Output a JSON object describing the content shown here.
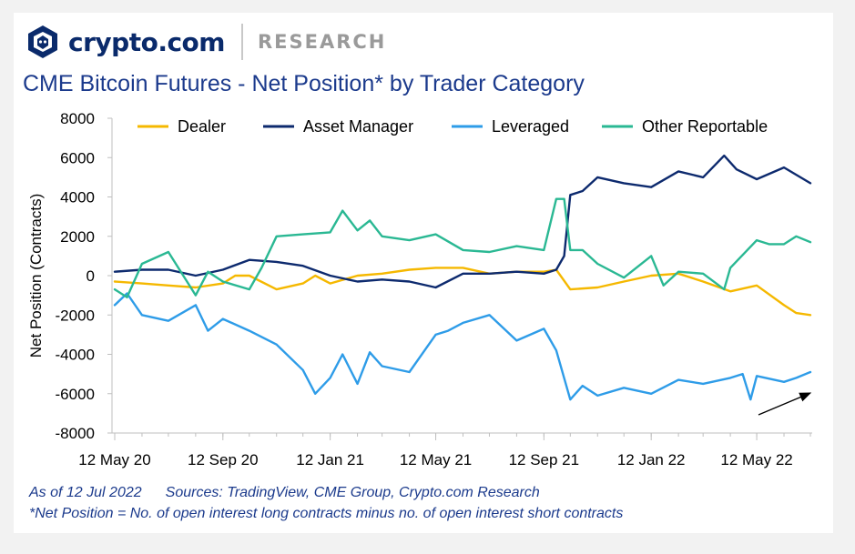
{
  "header": {
    "brand_name": "crypto.com",
    "section_label": "RESEARCH",
    "logo_icon": "crypto-com-lion-shield-icon"
  },
  "footer": {
    "as_of": "As of 12 Jul 2022",
    "sources": "Sources: TradingView, CME Group, Crypto.com Research",
    "note": "*Net Position = No. of open interest long contracts minus no. of open interest short contracts"
  },
  "chart_data": {
    "type": "line",
    "title": "CME Bitcoin Futures - Net Position* by Trader Category",
    "xlabel": "",
    "ylabel": "Net Position (Contracts)",
    "ylim": [
      -8000,
      8000
    ],
    "y_ticks": [
      8000,
      6000,
      4000,
      2000,
      0,
      -2000,
      -4000,
      -6000,
      -8000
    ],
    "x_ticks": [
      "12 May 20",
      "12 Sep 20",
      "12 Jan 21",
      "12 May 21",
      "12 Sep 21",
      "12 Jan 22",
      "12 May 22"
    ],
    "legend_placement": "top",
    "grid": false,
    "colors": {
      "dealer": "#f5b800",
      "asset_manager": "#0d2a6e",
      "leveraged": "#2e9ce8",
      "other_reportable": "#2ab893",
      "axis": "#bfbfbf",
      "arrow": "#000000"
    },
    "annotation": "upward arrow near latest Leveraged values",
    "series": [
      {
        "name": "Dealer",
        "color": "#f5b800",
        "points": [
          [
            "12 May 20",
            -300
          ],
          [
            "12 Jun 20",
            -400
          ],
          [
            "12 Jul 20",
            -500
          ],
          [
            "12 Aug 20",
            -600
          ],
          [
            "12 Sep 20",
            -400
          ],
          [
            "26 Sep 20",
            0
          ],
          [
            "12 Oct 20",
            0
          ],
          [
            "12 Nov 20",
            -700
          ],
          [
            "12 Dec 20",
            -400
          ],
          [
            "26 Dec 20",
            0
          ],
          [
            "12 Jan 21",
            -400
          ],
          [
            "12 Feb 21",
            0
          ],
          [
            "12 Mar 21",
            100
          ],
          [
            "12 Apr 21",
            300
          ],
          [
            "12 May 21",
            400
          ],
          [
            "12 Jun 21",
            400
          ],
          [
            "12 Jul 21",
            100
          ],
          [
            "12 Aug 21",
            200
          ],
          [
            "12 Sep 21",
            200
          ],
          [
            "26 Sep 21",
            300
          ],
          [
            "12 Oct 21",
            -700
          ],
          [
            "12 Nov 21",
            -600
          ],
          [
            "12 Dec 21",
            -300
          ],
          [
            "12 Jan 22",
            0
          ],
          [
            "12 Feb 22",
            100
          ],
          [
            "12 Mar 22",
            -300
          ],
          [
            "12 Apr 22",
            -800
          ],
          [
            "12 May 22",
            -500
          ],
          [
            "12 Jun 22",
            -1500
          ],
          [
            "26 Jun 22",
            -1900
          ],
          [
            "12 Jul 22",
            -2000
          ]
        ]
      },
      {
        "name": "Asset Manager",
        "color": "#0d2a6e",
        "points": [
          [
            "12 May 20",
            200
          ],
          [
            "12 Jun 20",
            300
          ],
          [
            "12 Jul 20",
            300
          ],
          [
            "12 Aug 20",
            0
          ],
          [
            "12 Sep 20",
            300
          ],
          [
            "12 Oct 20",
            800
          ],
          [
            "12 Nov 20",
            700
          ],
          [
            "12 Dec 20",
            500
          ],
          [
            "12 Jan 21",
            0
          ],
          [
            "12 Feb 21",
            -300
          ],
          [
            "12 Mar 21",
            -200
          ],
          [
            "12 Apr 21",
            -300
          ],
          [
            "12 May 21",
            -600
          ],
          [
            "12 Jun 21",
            100
          ],
          [
            "12 Jul 21",
            100
          ],
          [
            "12 Aug 21",
            200
          ],
          [
            "12 Sep 21",
            100
          ],
          [
            "26 Sep 21",
            300
          ],
          [
            "05 Oct 21",
            1000
          ],
          [
            "12 Oct 21",
            4100
          ],
          [
            "26 Oct 21",
            4300
          ],
          [
            "12 Nov 21",
            5000
          ],
          [
            "12 Dec 21",
            4700
          ],
          [
            "12 Jan 22",
            4500
          ],
          [
            "12 Feb 22",
            5300
          ],
          [
            "12 Mar 22",
            5000
          ],
          [
            "05 Apr 22",
            6100
          ],
          [
            "19 Apr 22",
            5400
          ],
          [
            "12 May 22",
            4900
          ],
          [
            "12 Jun 22",
            5500
          ],
          [
            "12 Jul 22",
            4700
          ]
        ]
      },
      {
        "name": "Leveraged",
        "color": "#2e9ce8",
        "points": [
          [
            "12 May 20",
            -1500
          ],
          [
            "26 May 20",
            -900
          ],
          [
            "12 Jun 20",
            -2000
          ],
          [
            "12 Jul 20",
            -2300
          ],
          [
            "12 Aug 20",
            -1500
          ],
          [
            "26 Aug 20",
            -2800
          ],
          [
            "12 Sep 20",
            -2200
          ],
          [
            "12 Oct 20",
            -2800
          ],
          [
            "12 Nov 20",
            -3500
          ],
          [
            "12 Dec 20",
            -4800
          ],
          [
            "26 Dec 20",
            -6000
          ],
          [
            "12 Jan 21",
            -5200
          ],
          [
            "26 Jan 21",
            -4000
          ],
          [
            "12 Feb 21",
            -5500
          ],
          [
            "26 Feb 21",
            -3900
          ],
          [
            "12 Mar 21",
            -4600
          ],
          [
            "12 Apr 21",
            -4900
          ],
          [
            "12 May 21",
            -3000
          ],
          [
            "26 May 21",
            -2800
          ],
          [
            "12 Jun 21",
            -2400
          ],
          [
            "12 Jul 21",
            -2000
          ],
          [
            "12 Aug 21",
            -3300
          ],
          [
            "12 Sep 21",
            -2700
          ],
          [
            "26 Sep 21",
            -3800
          ],
          [
            "12 Oct 21",
            -6300
          ],
          [
            "26 Oct 21",
            -5600
          ],
          [
            "12 Nov 21",
            -6100
          ],
          [
            "12 Dec 21",
            -5700
          ],
          [
            "12 Jan 22",
            -6000
          ],
          [
            "12 Feb 22",
            -5300
          ],
          [
            "12 Mar 22",
            -5500
          ],
          [
            "12 Apr 22",
            -5200
          ],
          [
            "26 Apr 22",
            -5000
          ],
          [
            "05 May 22",
            -6300
          ],
          [
            "12 May 22",
            -5100
          ],
          [
            "12 Jun 22",
            -5400
          ],
          [
            "26 Jun 22",
            -5200
          ],
          [
            "12 Jul 22",
            -4900
          ]
        ]
      },
      {
        "name": "Other Reportable",
        "color": "#2ab893",
        "points": [
          [
            "12 May 20",
            -700
          ],
          [
            "26 May 20",
            -1100
          ],
          [
            "12 Jun 20",
            600
          ],
          [
            "12 Jul 20",
            1200
          ],
          [
            "12 Aug 20",
            -1000
          ],
          [
            "26 Aug 20",
            200
          ],
          [
            "12 Sep 20",
            -300
          ],
          [
            "12 Oct 20",
            -700
          ],
          [
            "26 Oct 20",
            400
          ],
          [
            "12 Nov 20",
            2000
          ],
          [
            "12 Dec 20",
            2100
          ],
          [
            "12 Jan 21",
            2200
          ],
          [
            "26 Jan 21",
            3300
          ],
          [
            "12 Feb 21",
            2300
          ],
          [
            "26 Feb 21",
            2800
          ],
          [
            "12 Mar 21",
            2000
          ],
          [
            "12 Apr 21",
            1800
          ],
          [
            "12 May 21",
            2100
          ],
          [
            "12 Jun 21",
            1300
          ],
          [
            "12 Jul 21",
            1200
          ],
          [
            "12 Aug 21",
            1500
          ],
          [
            "12 Sep 21",
            1300
          ],
          [
            "26 Sep 21",
            3900
          ],
          [
            "05 Oct 21",
            3900
          ],
          [
            "12 Oct 21",
            1300
          ],
          [
            "26 Oct 21",
            1300
          ],
          [
            "12 Nov 21",
            600
          ],
          [
            "12 Dec 21",
            -100
          ],
          [
            "12 Jan 22",
            1000
          ],
          [
            "26 Jan 22",
            -500
          ],
          [
            "12 Feb 22",
            200
          ],
          [
            "12 Mar 22",
            100
          ],
          [
            "05 Apr 22",
            -700
          ],
          [
            "12 Apr 22",
            400
          ],
          [
            "12 May 22",
            1800
          ],
          [
            "26 May 22",
            1600
          ],
          [
            "12 Jun 22",
            1600
          ],
          [
            "26 Jun 22",
            2000
          ],
          [
            "12 Jul 22",
            1700
          ]
        ]
      }
    ]
  }
}
